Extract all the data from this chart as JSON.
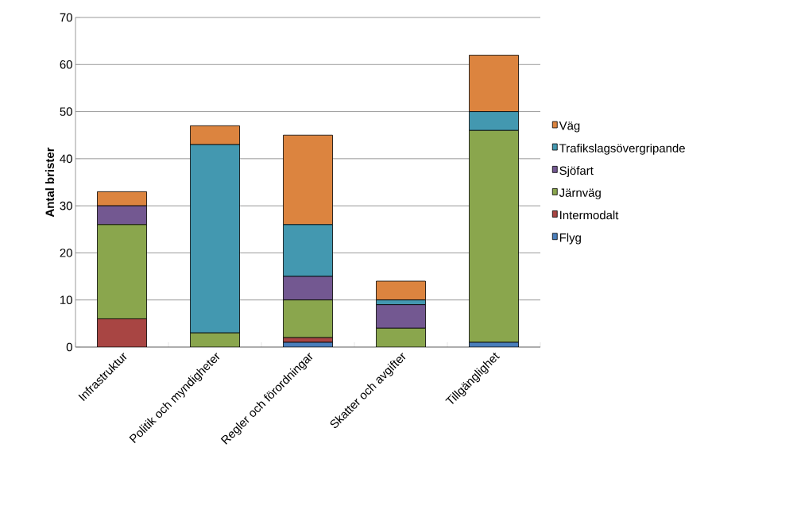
{
  "chart_data": {
    "type": "bar",
    "stacked": true,
    "ylabel": "**Antal brister**",
    "categories": [
      "Infrastruktur",
      "Politik och myndigheter",
      "Regler och förordningar",
      "Skatter och avgifter",
      "Tillgänglighet"
    ],
    "series": [
      {
        "name": "Flyg",
        "color": "#4a7ebb",
        "values": [
          0,
          0,
          1,
          0,
          1
        ]
      },
      {
        "name": "Intermodalt",
        "color": "#a84543",
        "values": [
          6,
          0,
          1,
          0,
          0
        ]
      },
      {
        "name": "Järnväg",
        "color": "#8aa64d",
        "values": [
          20,
          3,
          8,
          4,
          45
        ]
      },
      {
        "name": "Sjöfart",
        "color": "#735891",
        "values": [
          4,
          0,
          5,
          5,
          0
        ]
      },
      {
        "name": "Trafikslagsövergripande",
        "color": "#4398b0",
        "values": [
          0,
          40,
          11,
          1,
          4
        ]
      },
      {
        "name": "Väg",
        "color": "#dc843f",
        "values": [
          3,
          4,
          19,
          4,
          12
        ]
      }
    ],
    "ylim": [
      0,
      70
    ],
    "yticks": [
      0,
      10,
      20,
      30,
      40,
      50,
      60,
      70
    ],
    "grid": "y",
    "legend": "right"
  }
}
